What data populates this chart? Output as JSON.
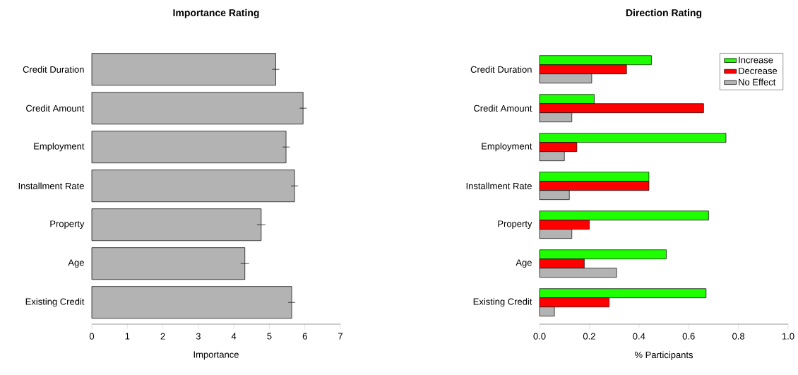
{
  "chart_data": [
    {
      "type": "bar",
      "orientation": "horizontal",
      "title": "Importance Rating",
      "xlabel": "Importance",
      "categories": [
        "Credit Duration",
        "Credit Amount",
        "Employment",
        "Installment Rate",
        "Property",
        "Age",
        "Existing Credit"
      ],
      "values": [
        5.18,
        5.95,
        5.47,
        5.71,
        4.77,
        4.31,
        5.63
      ],
      "errors": [
        0.1,
        0.1,
        0.1,
        0.1,
        0.12,
        0.12,
        0.1
      ],
      "color": "#b3b3b3",
      "xlim": [
        0,
        7
      ],
      "xticks": [
        0,
        1,
        2,
        3,
        4,
        5,
        6,
        7
      ]
    },
    {
      "type": "bar",
      "orientation": "horizontal",
      "title": "Direction Rating",
      "xlabel": "% Participants",
      "categories": [
        "Credit Duration",
        "Credit Amount",
        "Employment",
        "Installment Rate",
        "Property",
        "Age",
        "Existing Credit"
      ],
      "series": [
        {
          "name": "Increase",
          "color": "#1eff00",
          "values": [
            0.45,
            0.22,
            0.75,
            0.44,
            0.68,
            0.51,
            0.67
          ]
        },
        {
          "name": "Decrease",
          "color": "#ff0000",
          "values": [
            0.35,
            0.66,
            0.15,
            0.44,
            0.2,
            0.18,
            0.28
          ]
        },
        {
          "name": "No Effect",
          "color": "#b3b3b3",
          "values": [
            0.21,
            0.13,
            0.1,
            0.12,
            0.13,
            0.31,
            0.06
          ]
        }
      ],
      "legend": "top right",
      "xlim": [
        0,
        1
      ],
      "xticks": [
        {
          "value": 0,
          "label": "0.0"
        },
        0.2,
        0.4,
        0.6,
        0.8,
        {
          "value": 1,
          "label": "1.0"
        }
      ]
    }
  ]
}
